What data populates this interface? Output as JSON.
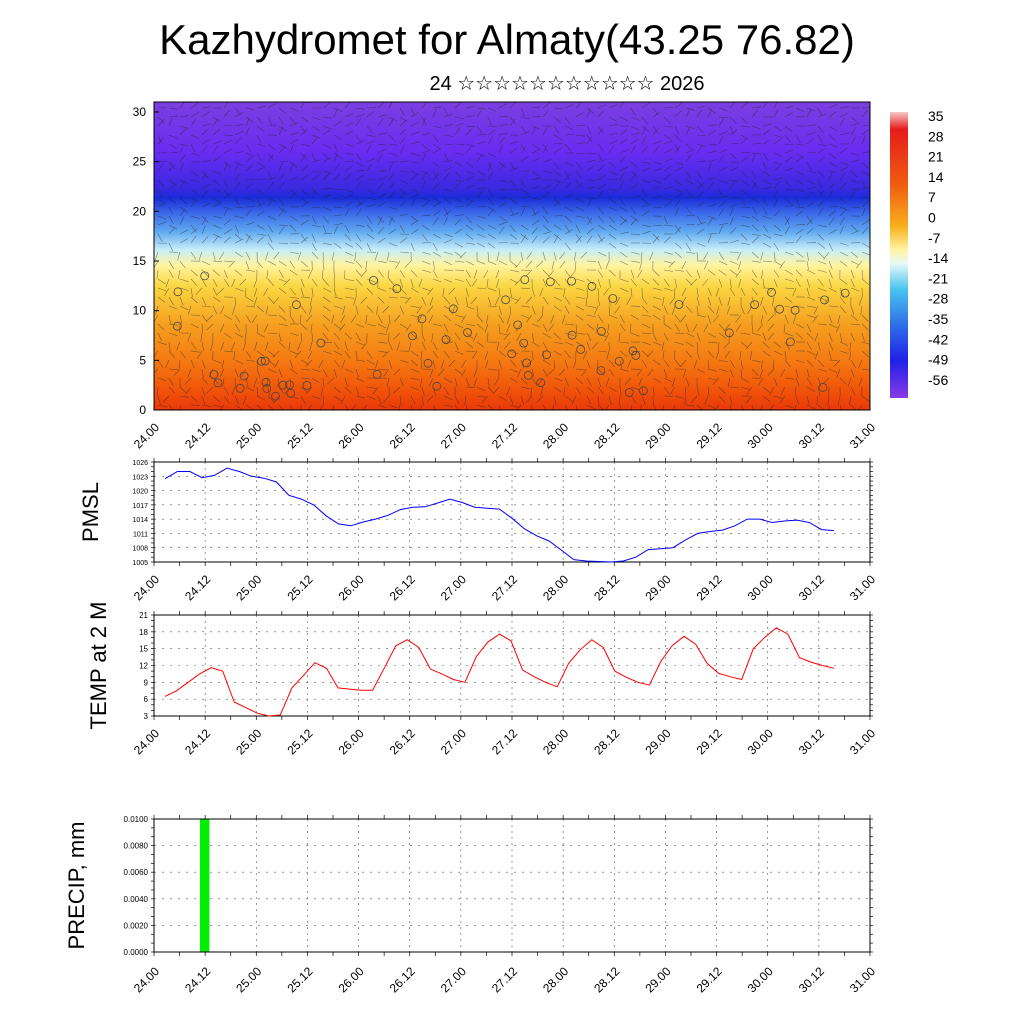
{
  "title": "Kazhydromet for Almaty(43.25 76.82)",
  "subtitle": "24 ☆☆☆☆☆☆☆☆☆☆☆ 2026",
  "colors": {
    "pmsl_line": "#0000ff",
    "temp_line": "#ff0000",
    "precip_bar": "#00ee00"
  },
  "chart_data": [
    {
      "type": "heatmap",
      "name": "temperature cross-section",
      "y_ticks": [
        "0",
        "5",
        "10",
        "15",
        "20",
        "25",
        "30"
      ],
      "ylim": [
        0,
        30
      ],
      "x_ticks": [
        "24.00",
        "24.12",
        "25.00",
        "25.12",
        "26.00",
        "26.12",
        "27.00",
        "27.12",
        "28.00",
        "28.12",
        "29.00",
        "29.12",
        "30.00",
        "30.12",
        "31.00"
      ],
      "colorbar_labels": [
        "35",
        "28",
        "21",
        "14",
        "7",
        "0",
        "-7",
        "-14",
        "-21",
        "-28",
        "-35",
        "-42",
        "-49",
        "-56"
      ]
    },
    {
      "type": "line",
      "name": "PMSL",
      "ylabel": "PMSL",
      "ylim": [
        1005,
        1026
      ],
      "y_ticks": [
        "1026",
        "1023",
        "1020",
        "1017",
        "1014",
        "1011",
        "1008",
        "1005"
      ],
      "x_ticks": [
        "24.00",
        "24.12",
        "25.00",
        "25.12",
        "26.00",
        "26.12",
        "27.00",
        "27.12",
        "28.00",
        "28.12",
        "29.00",
        "29.12",
        "30.00",
        "30.12",
        "31.00"
      ],
      "values": [
        1022.5,
        1024,
        1024,
        1022.7,
        1023.2,
        1024.7,
        1024,
        1023,
        1022.6,
        1021.8,
        1019,
        1018.2,
        1017,
        1014.7,
        1013,
        1012.6,
        1013.4,
        1014,
        1014.8,
        1016,
        1016.5,
        1016.6,
        1017.4,
        1018.2,
        1017.5,
        1016.5,
        1016.3,
        1016.1,
        1014.2,
        1012,
        1010.5,
        1009.4,
        1007.5,
        1005.5,
        1005.2,
        1005.1,
        1005,
        1005.2,
        1006,
        1007.6,
        1007.8,
        1008,
        1009.6,
        1011,
        1011.4,
        1011.7,
        1012.6,
        1014,
        1014,
        1013.3,
        1013.6,
        1013.8,
        1013.3,
        1011.8,
        1011.6
      ]
    },
    {
      "type": "line",
      "name": "TEMP at 2 M",
      "ylabel": "TEMP at 2 M",
      "ylim": [
        3,
        21
      ],
      "y_ticks": [
        "21",
        "18",
        "15",
        "12",
        "9",
        "6",
        "3"
      ],
      "x_ticks": [
        "24.00",
        "24.12",
        "25.00",
        "25.12",
        "26.00",
        "26.12",
        "27.00",
        "27.12",
        "28.00",
        "28.12",
        "29.00",
        "29.12",
        "30.00",
        "30.12",
        "31.00"
      ],
      "values": [
        6.5,
        7.5,
        9,
        10.5,
        11.6,
        11,
        5.5,
        4.5,
        3.5,
        3,
        3.2,
        8,
        10.2,
        12.5,
        11.5,
        8,
        7.8,
        7.6,
        7.6,
        11.5,
        15.5,
        16.6,
        15.2,
        11.4,
        10.5,
        9.5,
        9,
        13.6,
        16.2,
        17.6,
        16.4,
        11.2,
        10,
        9,
        8.2,
        12.4,
        14.8,
        16.6,
        15.2,
        11,
        9.9,
        9,
        8.5,
        12.8,
        15.6,
        17.2,
        15.8,
        12.4,
        10.6,
        10,
        9.5,
        15,
        17,
        18.7,
        17.6,
        13.4,
        12.6,
        12,
        11.5
      ]
    },
    {
      "type": "bar",
      "name": "PRECIP",
      "ylabel": "PRECIP, mm",
      "ylim": [
        0,
        0.01
      ],
      "y_ticks": [
        "0.0100",
        "0.0080",
        "0.0060",
        "0.0040",
        "0.0020",
        "0.0000"
      ],
      "x_ticks": [
        "24.00",
        "24.12",
        "25.00",
        "25.12",
        "26.00",
        "26.12",
        "27.00",
        "27.12",
        "28.00",
        "28.12",
        "29.00",
        "29.12",
        "30.00",
        "30.12",
        "31.00"
      ],
      "bars": [
        {
          "x_hours": 9,
          "width_hours": 1,
          "value": 0.01
        }
      ]
    }
  ]
}
